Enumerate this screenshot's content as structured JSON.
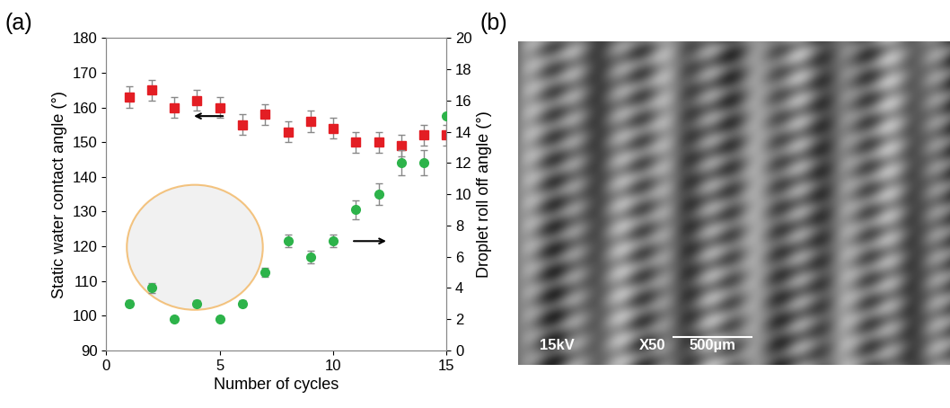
{
  "chart_data": [
    {
      "type": "scatter",
      "label": "(a)",
      "x_label": "Number of cycles",
      "y_label": "Static water contact angle (°)",
      "y2_label": "Droplet roll off angle (°)",
      "x": [
        1,
        2,
        3,
        4,
        5,
        6,
        7,
        8,
        9,
        10,
        11,
        12,
        13,
        14,
        15
      ],
      "xlim": [
        0,
        15
      ],
      "xticks": [
        0,
        5,
        10,
        15
      ],
      "ylim": [
        90,
        180
      ],
      "yticks": [
        90,
        100,
        110,
        120,
        130,
        140,
        150,
        160,
        170,
        180
      ],
      "y2lim": [
        0,
        20
      ],
      "y2ticks": [
        0,
        2,
        4,
        6,
        8,
        10,
        12,
        14,
        16,
        18,
        20
      ],
      "series": [
        {
          "color": "#e31e24",
          "marker": "square",
          "axis": "y",
          "values": [
            163,
            165,
            160,
            162,
            160,
            155,
            158,
            153,
            156,
            154,
            150,
            150,
            149,
            152,
            152
          ],
          "error": [
            3,
            3,
            3,
            3,
            3,
            3,
            3,
            3,
            3,
            3,
            3,
            3,
            3,
            3,
            3
          ]
        },
        {
          "color": "#2db34a",
          "marker": "circle",
          "axis": "y2",
          "values": [
            3,
            4,
            2,
            3,
            2,
            3,
            5,
            7,
            6,
            7,
            9,
            10,
            12,
            12,
            15
          ],
          "error": [
            0.2,
            0.3,
            0.1,
            0.2,
            0.1,
            0.2,
            0.3,
            0.4,
            0.4,
            0.4,
            0.6,
            0.7,
            0.8,
            0.8,
            0.0
          ]
        }
      ]
    },
    {
      "type": "image",
      "label": "(b)",
      "annotations": [
        "15kV",
        "X50",
        "500µm"
      ]
    }
  ]
}
